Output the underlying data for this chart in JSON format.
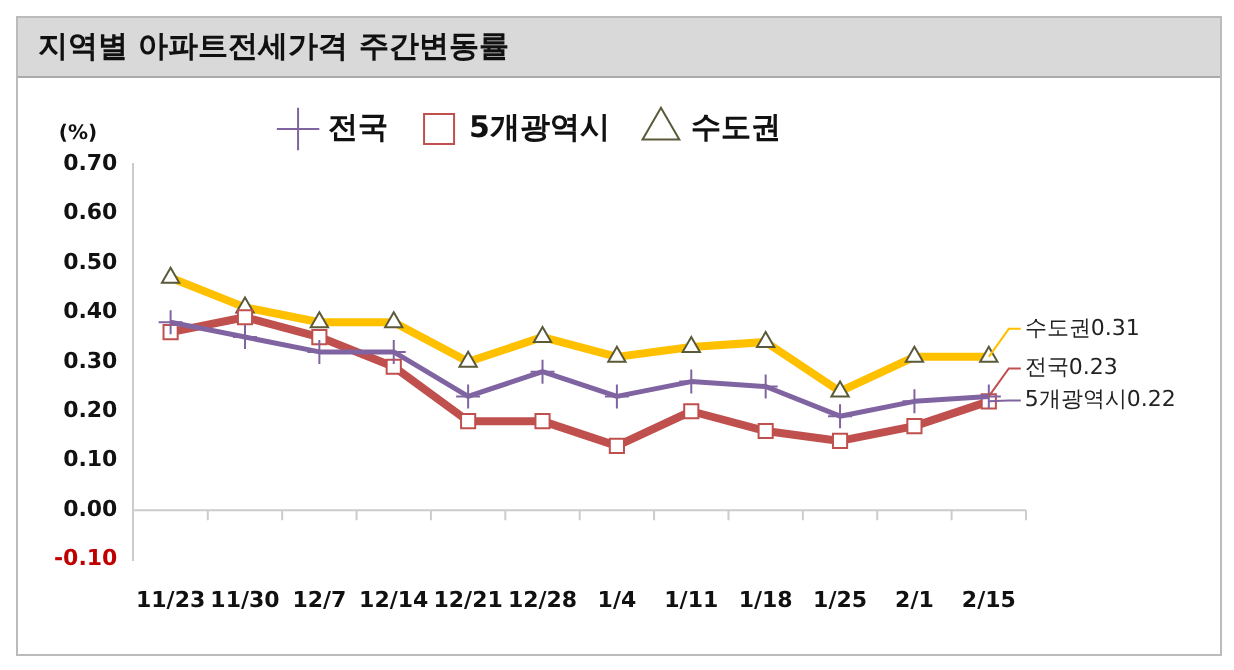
{
  "chart_data": {
    "type": "line",
    "title": "지역별 아파트전세가격 주간변동률",
    "ylabel": "(%)",
    "categories": [
      "11/23",
      "11/30",
      "12/7",
      "12/14",
      "12/21",
      "12/28",
      "1/4",
      "1/11",
      "1/18",
      "1/25",
      "2/1",
      "2/15"
    ],
    "series": [
      {
        "name": "수도권",
        "color": "#ffc000",
        "marker": "triangle",
        "values": [
          0.47,
          0.41,
          0.38,
          0.38,
          0.3,
          0.35,
          0.31,
          0.33,
          0.34,
          0.24,
          0.31,
          0.31
        ]
      },
      {
        "name": "5개광역시",
        "color": "#c0504d",
        "marker": "square",
        "values": [
          0.36,
          0.39,
          0.35,
          0.29,
          0.18,
          0.18,
          0.13,
          0.2,
          0.16,
          0.14,
          0.17,
          0.22
        ]
      },
      {
        "name": "전국",
        "color": "#8064a2",
        "marker": "cross",
        "values": [
          0.38,
          0.35,
          0.32,
          0.32,
          0.23,
          0.28,
          0.23,
          0.26,
          0.25,
          0.19,
          0.22,
          0.23
        ]
      }
    ],
    "ylim": [
      -0.1,
      0.7
    ],
    "yticks": [
      {
        "value": -0.1,
        "label": "-0.10"
      },
      {
        "value": 0,
        "label": "0.00"
      },
      {
        "value": 0.1,
        "label": "0.10"
      },
      {
        "value": 0.2,
        "label": "0.20"
      },
      {
        "value": 0.3,
        "label": "0.30"
      },
      {
        "value": 0.4,
        "label": "0.40"
      },
      {
        "value": 0.5,
        "label": "0.50"
      },
      {
        "value": 0.6,
        "label": "0.60"
      },
      {
        "value": 0.7,
        "label": "0.70"
      }
    ],
    "grid": false,
    "legend": "top",
    "ref_lines": [
      {
        "axis": "y",
        "value": 0,
        "color": "#cccccc"
      }
    ],
    "annotations": [
      {
        "text": "수도권0.31",
        "x": "2/15",
        "y": 0.31
      },
      {
        "text": "전국0.23",
        "x": "2/15",
        "y": 0.23
      },
      {
        "text": "5개광역시0.22",
        "x": "2/15",
        "y": 0.22
      }
    ]
  }
}
